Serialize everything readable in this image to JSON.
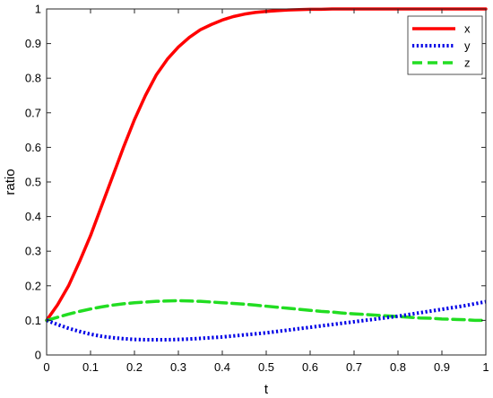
{
  "chart_data": {
    "type": "line",
    "title": "",
    "xlabel": "t",
    "ylabel": "ratio",
    "xlim": [
      0,
      1
    ],
    "ylim": [
      0,
      1
    ],
    "xticks": [
      0,
      0.1,
      0.2,
      0.3,
      0.4,
      0.5,
      0.6,
      0.7,
      0.8,
      0.9,
      1
    ],
    "yticks": [
      0,
      0.1,
      0.2,
      0.3,
      0.4,
      0.5,
      0.6,
      0.7,
      0.8,
      0.9,
      1
    ],
    "xtick_labels": [
      "0",
      "0.1",
      "0.2",
      "0.3",
      "0.4",
      "0.5",
      "0.6",
      "0.7",
      "0.8",
      "0.9",
      "1"
    ],
    "ytick_labels": [
      "0",
      "0.1",
      "0.2",
      "0.3",
      "0.4",
      "0.5",
      "0.6",
      "0.7",
      "0.8",
      "0.9",
      "1"
    ],
    "grid": false,
    "legend_position": "top-right",
    "x": [
      0,
      0.025,
      0.05,
      0.075,
      0.1,
      0.125,
      0.15,
      0.175,
      0.2,
      0.225,
      0.25,
      0.275,
      0.3,
      0.325,
      0.35,
      0.375,
      0.4,
      0.425,
      0.45,
      0.475,
      0.5,
      0.525,
      0.55,
      0.575,
      0.6,
      0.625,
      0.65,
      0.675,
      0.7,
      0.725,
      0.75,
      0.775,
      0.8,
      0.825,
      0.85,
      0.875,
      0.9,
      0.925,
      0.95,
      0.975,
      1
    ],
    "series": [
      {
        "name": "x",
        "color": "#ff0000",
        "style": "solid",
        "values": [
          0.1,
          0.145,
          0.2,
          0.27,
          0.345,
          0.43,
          0.515,
          0.6,
          0.68,
          0.75,
          0.81,
          0.855,
          0.89,
          0.918,
          0.94,
          0.955,
          0.968,
          0.978,
          0.985,
          0.99,
          0.993,
          0.995,
          0.997,
          0.998,
          0.999,
          0.999,
          1,
          1,
          1,
          1,
          1,
          1,
          1,
          1,
          1,
          1,
          1,
          1,
          1,
          1,
          1
        ]
      },
      {
        "name": "y",
        "color": "#0000e6",
        "style": "dotted",
        "values": [
          0.1,
          0.088,
          0.077,
          0.068,
          0.06,
          0.054,
          0.05,
          0.047,
          0.045,
          0.044,
          0.044,
          0.044,
          0.045,
          0.046,
          0.048,
          0.05,
          0.052,
          0.055,
          0.058,
          0.061,
          0.064,
          0.068,
          0.072,
          0.076,
          0.08,
          0.084,
          0.088,
          0.092,
          0.096,
          0.1,
          0.104,
          0.108,
          0.112,
          0.117,
          0.122,
          0.127,
          0.132,
          0.137,
          0.142,
          0.148,
          0.154
        ]
      },
      {
        "name": "z",
        "color": "#22dd22",
        "style": "dashed",
        "values": [
          0.1,
          0.109,
          0.118,
          0.126,
          0.133,
          0.139,
          0.144,
          0.148,
          0.151,
          0.153,
          0.155,
          0.156,
          0.157,
          0.156,
          0.155,
          0.153,
          0.151,
          0.149,
          0.147,
          0.144,
          0.141,
          0.138,
          0.135,
          0.132,
          0.129,
          0.126,
          0.124,
          0.121,
          0.119,
          0.117,
          0.115,
          0.113,
          0.111,
          0.109,
          0.107,
          0.106,
          0.104,
          0.103,
          0.102,
          0.1,
          0.1
        ]
      }
    ]
  }
}
